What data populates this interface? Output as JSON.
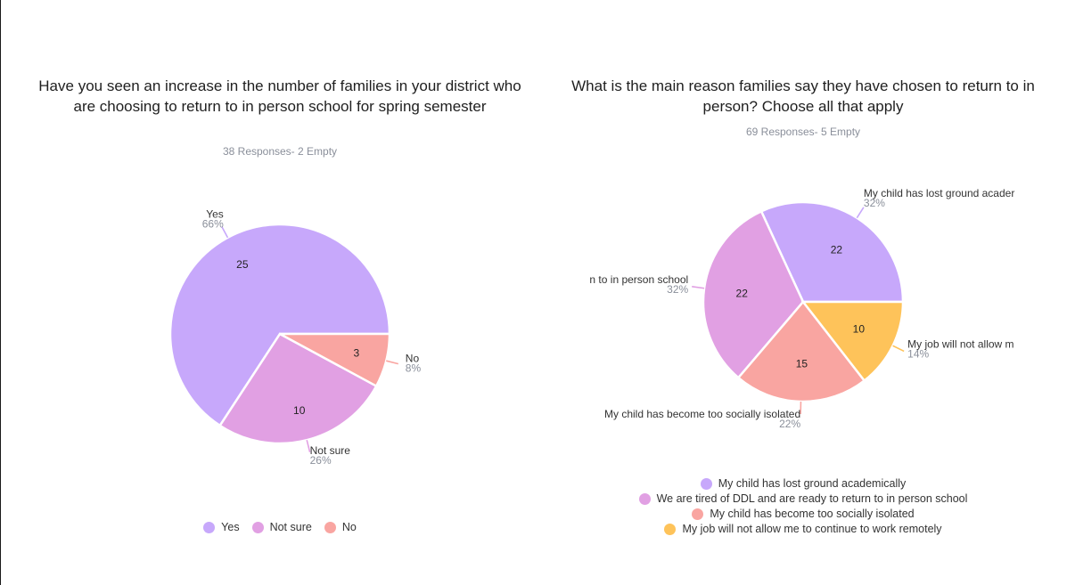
{
  "chart_data": [
    {
      "type": "pie",
      "title": "Have you seen an increase in the number of families in your district who are choosing to return to in person school for spring semester",
      "subtitle": "38 Responses- 2 Empty",
      "slices": [
        {
          "label": "Yes",
          "value": 25,
          "percent": "66%",
          "color": "#c7a8fb"
        },
        {
          "label": "Not sure",
          "value": 10,
          "percent": "26%",
          "color": "#e1a0e3"
        },
        {
          "label": "No",
          "value": 3,
          "percent": "8%",
          "color": "#f9a5a1"
        }
      ],
      "legend_position": "bottom"
    },
    {
      "type": "pie",
      "title": "What is the main reason families say they have chosen to return to in person? Choose all that apply",
      "subtitle": "69 Responses- 5 Empty",
      "slices": [
        {
          "label": "My child has lost ground academically",
          "value": 22,
          "percent": "32%",
          "color": "#c7a8fb",
          "visible_label": "My child has lost ground acader"
        },
        {
          "label": "We are tired of DDL and are ready to return to in person school",
          "value": 22,
          "percent": "32%",
          "color": "#e1a0e3",
          "visible_label": "n to in person school"
        },
        {
          "label": "My child has become too socially isolated",
          "value": 15,
          "percent": "22%",
          "color": "#f9a5a1",
          "visible_label": "My child has become too socially isolated"
        },
        {
          "label": "My job will not allow me to continue to work remotely",
          "value": 10,
          "percent": "14%",
          "color": "#fec35a",
          "visible_label": "My job will not allow m"
        }
      ],
      "legend_position": "bottom"
    }
  ]
}
